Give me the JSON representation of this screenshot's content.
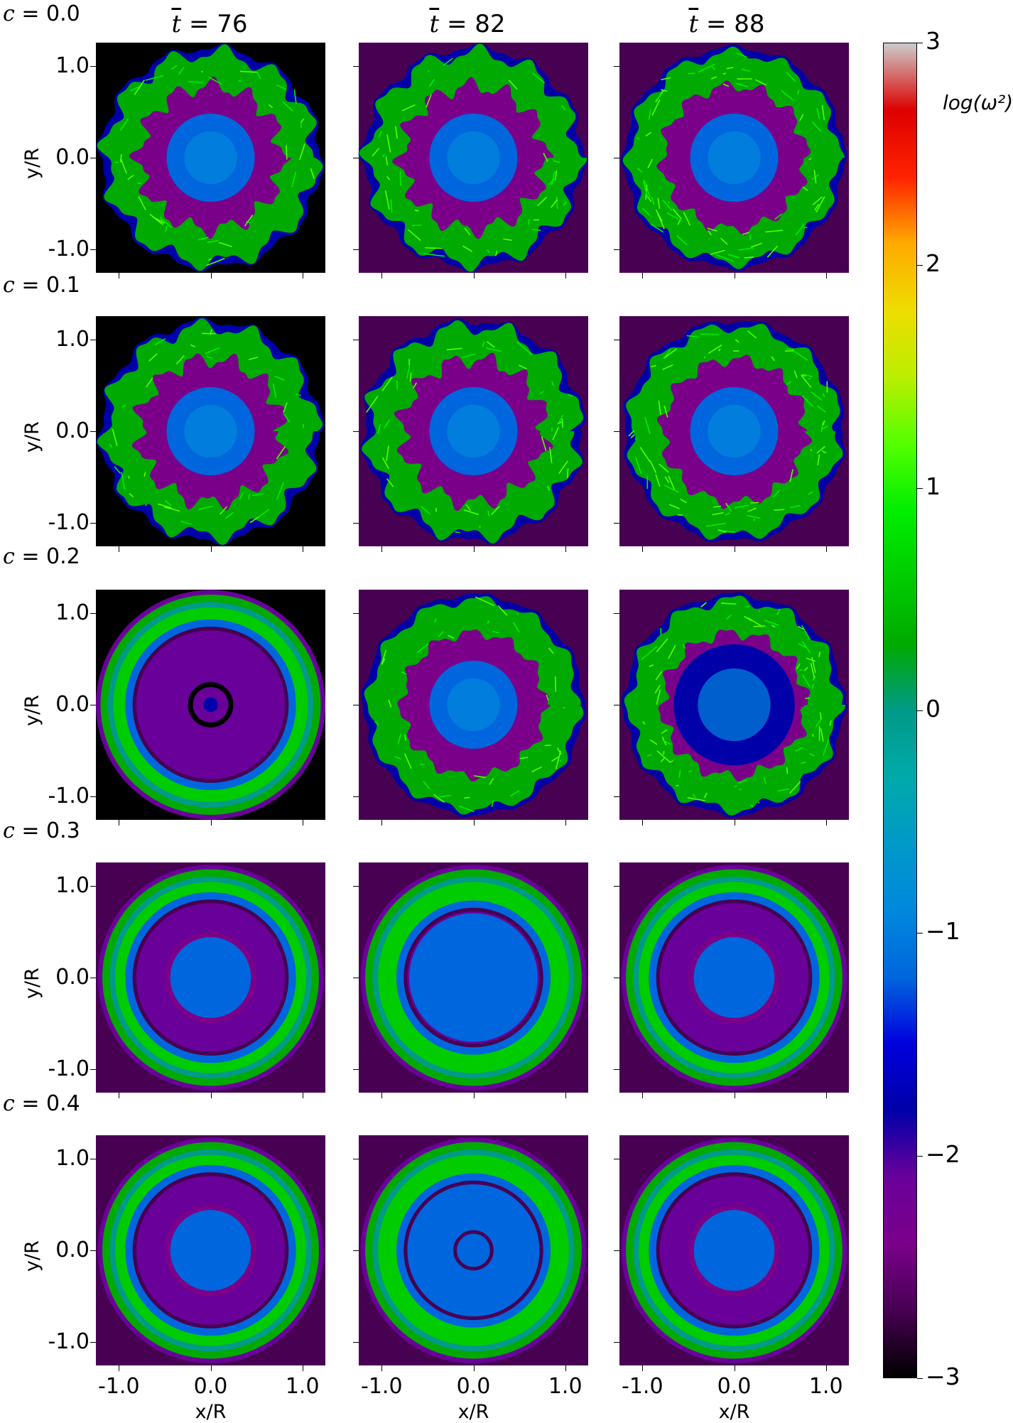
{
  "figure": {
    "colorbar_label": "log(ω²)",
    "colorbar_ticks": [
      "3",
      "2",
      "1",
      "0",
      "−1",
      "−2",
      "−3"
    ],
    "x_label": "x/R",
    "y_label": "y/R",
    "x_ticks": [
      "-1.0",
      "0.0",
      "1.0"
    ],
    "y_ticks": [
      "1.0",
      "0.0",
      "-1.0"
    ]
  },
  "columns": [
    {
      "prefix": "t",
      "value": "= 76"
    },
    {
      "prefix": "t",
      "value": "= 82"
    },
    {
      "prefix": "t",
      "value": "= 88"
    }
  ],
  "rows": [
    {
      "label_c": "c",
      "label_value": "= 0.0"
    },
    {
      "label_c": "c",
      "label_value": "= 0.1"
    },
    {
      "label_c": "c",
      "label_value": "= 0.2"
    },
    {
      "label_c": "c",
      "label_value": "= 0.3"
    },
    {
      "label_c": "c",
      "label_value": "= 0.4"
    }
  ],
  "chart_data": {
    "type": "heatmap",
    "colormap": "nipy_spectral",
    "colorbar": {
      "label": "log(ω²)",
      "range": [
        -3,
        3
      ]
    },
    "xlabel": "x/R",
    "ylabel": "y/R",
    "xlim": [
      -1.25,
      1.25
    ],
    "ylim": [
      -1.25,
      1.25
    ],
    "panels": [
      {
        "c": 0.0,
        "t": 76,
        "regime": "turbulent ring"
      },
      {
        "c": 0.0,
        "t": 82,
        "regime": "turbulent ring"
      },
      {
        "c": 0.0,
        "t": 88,
        "regime": "turbulent ring"
      },
      {
        "c": 0.1,
        "t": 76,
        "regime": "turbulent ring"
      },
      {
        "c": 0.1,
        "t": 82,
        "regime": "turbulent ring"
      },
      {
        "c": 0.1,
        "t": 88,
        "regime": "turbulent ring"
      },
      {
        "c": 0.2,
        "t": 76,
        "regime": "concentric rings"
      },
      {
        "c": 0.2,
        "t": 82,
        "regime": "wavy ring"
      },
      {
        "c": 0.2,
        "t": 88,
        "regime": "turbulent ring"
      },
      {
        "c": 0.3,
        "t": 76,
        "regime": "concentric rings"
      },
      {
        "c": 0.3,
        "t": 82,
        "regime": "concentric rings"
      },
      {
        "c": 0.3,
        "t": 88,
        "regime": "concentric rings"
      },
      {
        "c": 0.4,
        "t": 76,
        "regime": "concentric rings"
      },
      {
        "c": 0.4,
        "t": 82,
        "regime": "concentric rings"
      },
      {
        "c": 0.4,
        "t": 88,
        "regime": "concentric rings"
      }
    ]
  }
}
